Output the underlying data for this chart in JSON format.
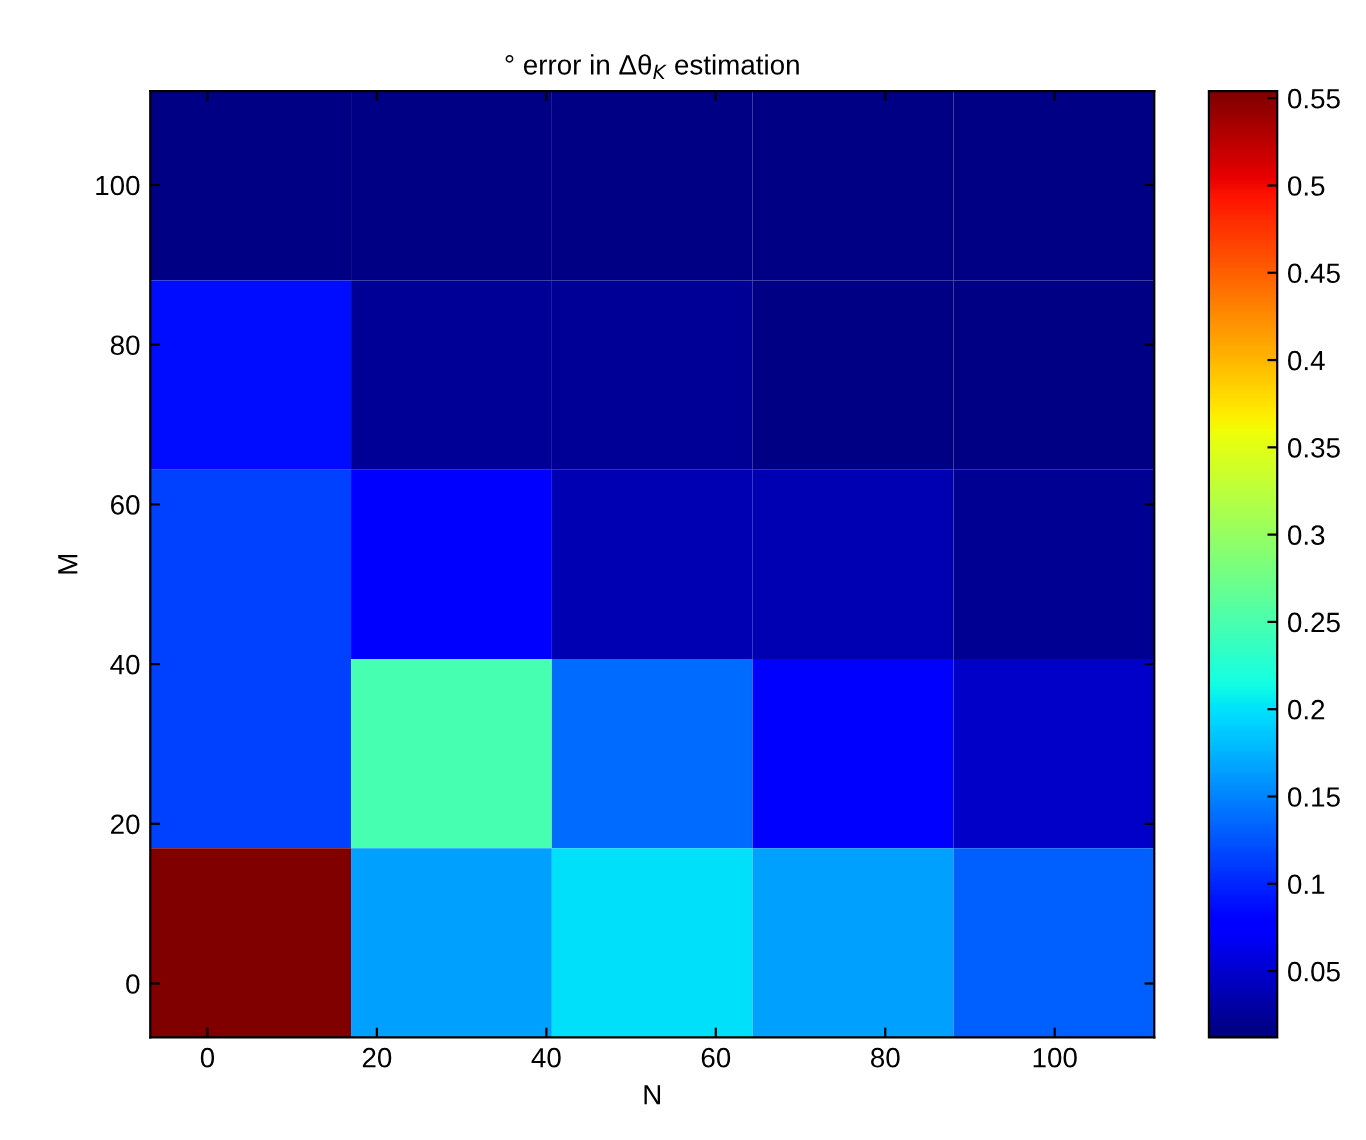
{
  "chart_data": {
    "type": "heatmap",
    "title": "° error in Δθ$_{K}$ estimation",
    "xlabel": "N",
    "ylabel": "M",
    "cells": [
      [
        0.016,
        0.016,
        0.016,
        0.016,
        0.016
      ],
      [
        0.088,
        0.024,
        0.024,
        0.016,
        0.016
      ],
      [
        0.114,
        0.072,
        0.037,
        0.037,
        0.021
      ],
      [
        0.114,
        0.249,
        0.139,
        0.08,
        0.046
      ],
      [
        0.554,
        0.165,
        0.199,
        0.165,
        0.131
      ]
    ],
    "xlim": [
      -6.75,
      111.75
    ],
    "xticks": [
      0,
      20,
      40,
      60,
      80,
      100
    ],
    "ylim": [
      -6.75,
      111.75
    ],
    "yticks": [
      0,
      20,
      40,
      60,
      80,
      100
    ],
    "clim": [
      0.012,
      0.554
    ],
    "cticks": [
      0.05,
      0.1,
      0.15,
      0.2,
      0.25,
      0.3,
      0.35,
      0.4,
      0.45,
      0.5,
      0.55
    ],
    "grid": false
  }
}
